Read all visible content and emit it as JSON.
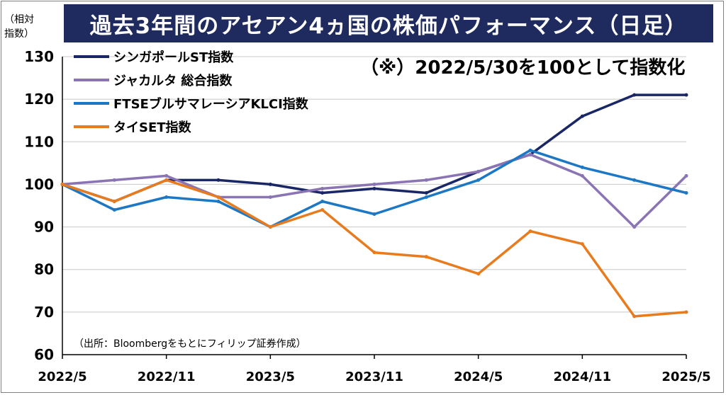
{
  "title": "過去3年間のアセアン4ヵ国の株価パフォーマンス（日足）",
  "ylabel_lines": [
    "（相対",
    "指数）"
  ],
  "note": "（※）2022/5/30を100として指数化",
  "source": "（出所：Bloombergをもとにフィリップ証券作成）",
  "chart_data": {
    "type": "line",
    "x": [
      "2022/5",
      "2022/8",
      "2022/11",
      "2023/2",
      "2023/5",
      "2023/8",
      "2023/11",
      "2024/2",
      "2024/5",
      "2024/8",
      "2024/11",
      "2025/2",
      "2025/5"
    ],
    "x_tick_labels": [
      "2022/5",
      "2022/11",
      "2023/5",
      "2023/11",
      "2024/5",
      "2024/11",
      "2025/5"
    ],
    "ylim": [
      60,
      130
    ],
    "y_ticks": [
      60,
      70,
      80,
      90,
      100,
      110,
      120,
      130
    ],
    "grid": true,
    "legend_position": "top-left",
    "series": [
      {
        "name": "シンガポールST指数",
        "color": "#1a2766",
        "values": [
          100,
          96,
          101,
          101,
          100,
          98,
          99,
          98,
          103,
          107,
          116,
          121,
          121
        ]
      },
      {
        "name": "ジャカルタ 総合指数",
        "color": "#8a74b4",
        "values": [
          100,
          101,
          102,
          97,
          97,
          99,
          100,
          101,
          103,
          107,
          102,
          90,
          102
        ]
      },
      {
        "name": "FTSEブルサマレーシアKLCI指数",
        "color": "#1c78c4",
        "values": [
          100,
          94,
          97,
          96,
          90,
          96,
          93,
          97,
          101,
          108,
          104,
          101,
          98
        ]
      },
      {
        "name": "タイSET指数",
        "color": "#e87b1e",
        "values": [
          100,
          96,
          101,
          97,
          90,
          94,
          84,
          83,
          79,
          89,
          86,
          69,
          70
        ]
      }
    ]
  }
}
